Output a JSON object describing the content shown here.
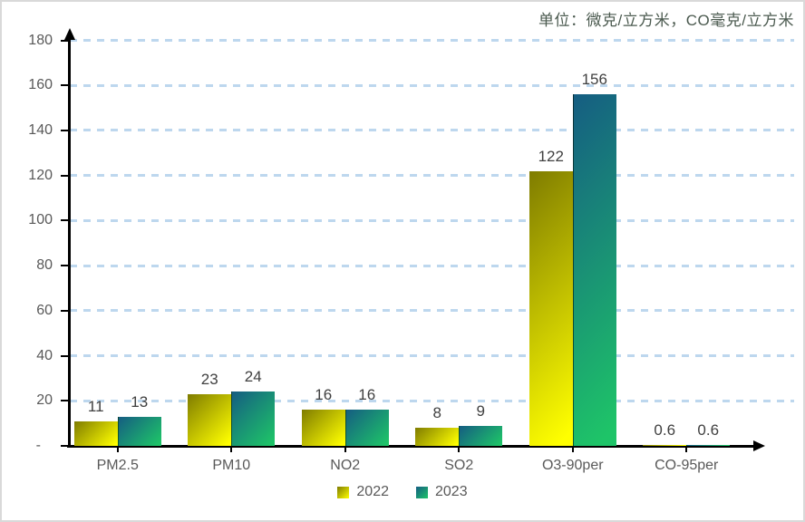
{
  "unit_note": "单位：微克/立方米，CO毫克/立方米",
  "chart_data": {
    "type": "bar",
    "title": "",
    "unit_note": "单位：微克/立方米，CO毫克/立方米",
    "categories": [
      "PM2.5",
      "PM10",
      "NO2",
      "SO2",
      "O3-90per",
      "CO-95per"
    ],
    "series": [
      {
        "name": "2022",
        "values": [
          11,
          23,
          16,
          8,
          122,
          0.6
        ],
        "labels": [
          "11",
          "23",
          "16",
          "8",
          "122",
          "0.6"
        ],
        "gradient_from": "#7f7c00",
        "gradient_to": "#ffff00"
      },
      {
        "name": "2023",
        "values": [
          13,
          24,
          16,
          9,
          156,
          0.6
        ],
        "labels": [
          "13",
          "24",
          "16",
          "9",
          "156",
          "0.6"
        ],
        "gradient_from": "#155d82",
        "gradient_to": "#1ec468"
      }
    ],
    "ylim": [
      0,
      180
    ],
    "ytick_step": 20,
    "ytick_labels": [
      "-",
      "20",
      "40",
      "60",
      "80",
      "100",
      "120",
      "140",
      "160",
      "180"
    ],
    "grid": "dashed",
    "grid_color": "#bdd7ee",
    "axis_color": "#000000",
    "value_label_color": "#404040",
    "tick_label_color": "#595959",
    "unit_note_color": "#4b5a4f",
    "legend_position": "bottom"
  }
}
